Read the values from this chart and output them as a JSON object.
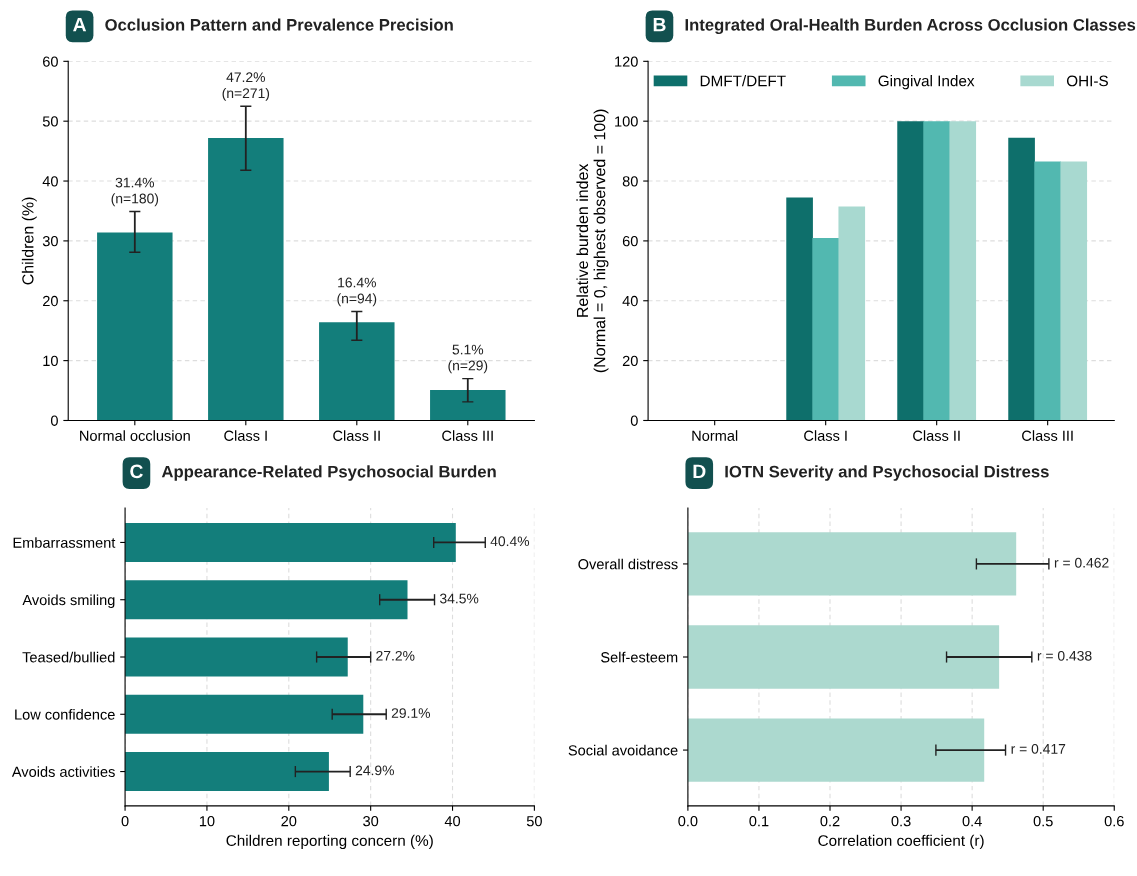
{
  "chart_data": [
    {
      "type": "bar",
      "title": "Occlusion Pattern and Prevalence Precision",
      "annotations": [
        "A"
      ],
      "ylabel": "Children (%)",
      "categories": [
        "Normal occlusion",
        "Class I",
        "Class II",
        "Class III"
      ],
      "values": [
        31.4,
        47.2,
        16.4,
        5.1
      ],
      "color": "#137e7b",
      "errors": [
        [
          28.1,
          34.9
        ],
        [
          41.8,
          52.5
        ],
        [
          13.4,
          18.2
        ],
        [
          3.1,
          7.0
        ]
      ],
      "value_labels": [
        "31.4%\n(n=180)",
        "47.2%\n(n=271)",
        "16.4%\n(n=94)",
        "5.1%\n(n=29)"
      ],
      "ylim": [
        0,
        60
      ],
      "yticks": [
        0,
        10,
        20,
        30,
        40,
        50,
        60
      ],
      "grid": "y"
    },
    {
      "type": "bar",
      "title": "Integrated Oral-Health Burden Across Occlusion Classes",
      "annotations": [
        "B"
      ],
      "ylabel": "Relative burden index\n(Normal = 0, highest observed = 100)",
      "categories": [
        "Normal",
        "Class I",
        "Class II",
        "Class III"
      ],
      "series": [
        {
          "name": "DMFT/DEFT",
          "color": "#0e6f6b",
          "values": [
            0,
            74.5,
            100,
            94.5
          ]
        },
        {
          "name": "Gingival Index",
          "color": "#52b8b0",
          "values": [
            0,
            61,
            100,
            86.5
          ]
        },
        {
          "name": "OHI-S",
          "color": "#a8d9d0",
          "values": [
            0,
            71.5,
            100,
            86.5
          ]
        }
      ],
      "ylim": [
        0,
        120
      ],
      "yticks": [
        0,
        20,
        40,
        60,
        80,
        100,
        120
      ],
      "grid": "y",
      "legend": "top"
    },
    {
      "type": "bar",
      "orientation": "horizontal",
      "title": "Appearance-Related Psychosocial Burden",
      "annotations": [
        "C"
      ],
      "xlabel": "Children reporting concern (%)",
      "categories": [
        "Embarrassment",
        "Avoids smiling",
        "Teased/bullied",
        "Low confidence",
        "Avoids activities"
      ],
      "values": [
        40.4,
        34.5,
        27.2,
        29.1,
        24.9
      ],
      "color": "#137e7b",
      "errors": [
        [
          37.7,
          44.0
        ],
        [
          31.1,
          37.8
        ],
        [
          23.4,
          30.0
        ],
        [
          25.3,
          31.9
        ],
        [
          20.8,
          27.5
        ]
      ],
      "value_labels": [
        "40.4%",
        "34.5%",
        "27.2%",
        "29.1%",
        "24.9%"
      ],
      "xlim": [
        0,
        50
      ],
      "xticks": [
        0,
        10,
        20,
        30,
        40,
        50
      ],
      "grid": "x"
    },
    {
      "type": "bar",
      "orientation": "horizontal",
      "title": "IOTN Severity and Psychosocial Distress",
      "annotations": [
        "D"
      ],
      "xlabel": "Correlation coefficient (r)",
      "categories": [
        "Overall distress",
        "Self-esteem",
        "Social avoidance"
      ],
      "values": [
        0.462,
        0.438,
        0.417
      ],
      "color": "#acd9cf",
      "errors": [
        [
          0.406,
          0.508
        ],
        [
          0.364,
          0.484
        ],
        [
          0.349,
          0.447
        ]
      ],
      "value_labels": [
        "r = 0.462",
        "r = 0.438",
        "r = 0.417"
      ],
      "xlim": [
        0,
        0.6
      ],
      "xticks": [
        {
          "value": 0,
          "label": "0.0"
        },
        0.1,
        0.2,
        0.3,
        0.4,
        0.5,
        0.6
      ],
      "grid": "x"
    }
  ]
}
